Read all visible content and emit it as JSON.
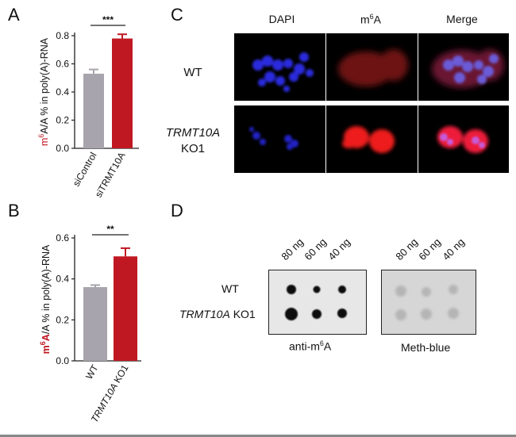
{
  "panels": {
    "A": {
      "letter": "A",
      "ylabel_prefix": "m",
      "ylabel_sup": "6",
      "ylabel_rest": "A/A % in poly(A)-RNA",
      "significance": "***",
      "chart_data": {
        "type": "bar",
        "categories": [
          "siControl",
          "siTRMT10A"
        ],
        "values": [
          0.53,
          0.78
        ],
        "errors": [
          0.03,
          0.03
        ],
        "ylim": [
          0.0,
          0.8
        ],
        "yticks": [
          "0.0",
          "0.2",
          "0.4",
          "0.6",
          "0.8"
        ],
        "bar_colors": [
          "#a8a4ad",
          "#c01822"
        ]
      }
    },
    "B": {
      "letter": "B",
      "ylabel_prefix": "m",
      "ylabel_sup": "6",
      "ylabel_A": "A",
      "ylabel_rest": "/A % in poly(A)-RNA",
      "significance": "**",
      "chart_data": {
        "type": "bar",
        "categories": [
          "WT",
          "TRMT10A KO1"
        ],
        "values": [
          0.36,
          0.51
        ],
        "errors": [
          0.01,
          0.04
        ],
        "ylim": [
          0.0,
          0.6
        ],
        "yticks": [
          "0.0",
          "0.2",
          "0.4",
          "0.6"
        ],
        "bar_colors": [
          "#a8a4ad",
          "#c01822"
        ]
      }
    },
    "C": {
      "letter": "C",
      "columns": [
        {
          "label": "DAPI"
        },
        {
          "label_m": "m",
          "label_sup": "6",
          "label_rest": "A"
        },
        {
          "label": "Merge"
        }
      ],
      "rows": [
        {
          "line1": "WT",
          "line2": ""
        },
        {
          "line1": "TRMT10A",
          "line2": "KO1"
        }
      ]
    },
    "D": {
      "letter": "D",
      "lanes": [
        "80 ng",
        "60 ng",
        "40 ng"
      ],
      "rows": [
        "WT",
        "TRMT10A",
        "KO1"
      ],
      "blot1_label_a": "anti-m",
      "blot1_label_sup": "6",
      "blot1_label_b": "A",
      "blot2_label": "Meth-blue"
    }
  }
}
